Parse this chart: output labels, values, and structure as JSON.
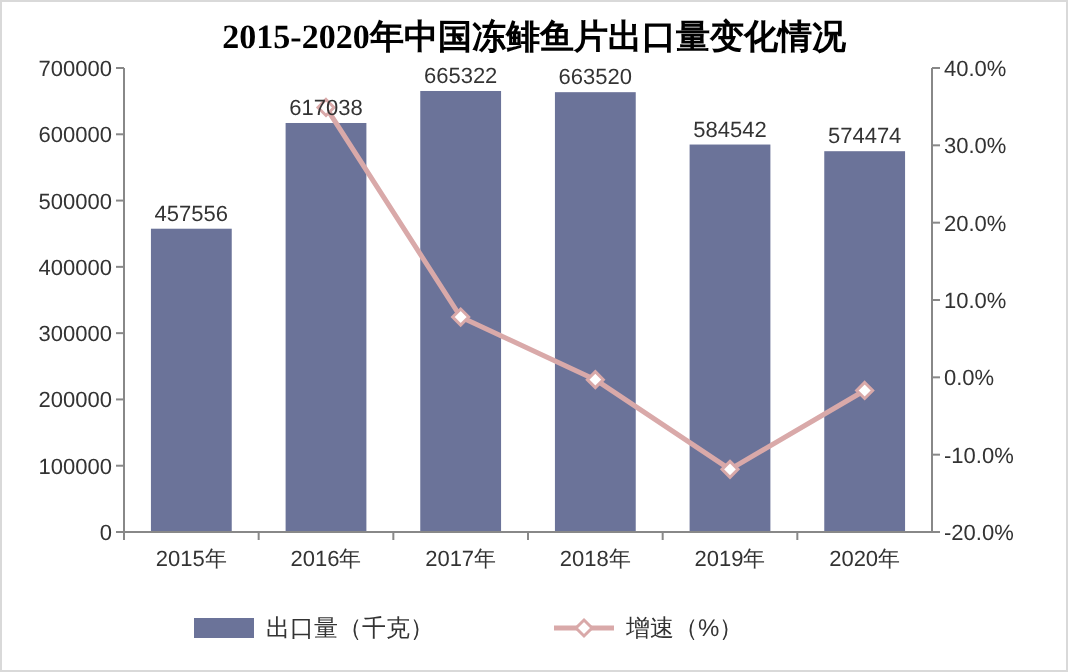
{
  "chart_data": {
    "type": "bar",
    "title": "2015-2020年中国冻鲱鱼片出口量变化情况",
    "categories": [
      "2015年",
      "2016年",
      "2017年",
      "2018年",
      "2019年",
      "2020年"
    ],
    "series": [
      {
        "name": "出口量（千克）",
        "color": "#6b7399",
        "values": [
          457556,
          617038,
          665322,
          663520,
          584542,
          574474
        ],
        "value_labels": [
          "457556",
          "617038",
          "665322",
          "663520",
          "584542",
          "574474"
        ]
      },
      {
        "name": "增速（%）",
        "type": "line",
        "axis": "y2",
        "color": "#d9a9a9",
        "marker": "diamond",
        "values": [
          null,
          34.9,
          7.8,
          -0.3,
          -11.9,
          -1.7
        ]
      }
    ],
    "ylim": [
      0,
      700000
    ],
    "yticks": [
      0,
      100000,
      200000,
      300000,
      400000,
      500000,
      600000,
      700000
    ],
    "y2lim": [
      -20,
      40
    ],
    "y2ticks": [
      {
        "value": -20,
        "label": "-20.0%"
      },
      {
        "value": -10,
        "label": "-10.0%"
      },
      {
        "value": 0,
        "label": "0.0%"
      },
      {
        "value": 10,
        "label": "10.0%"
      },
      {
        "value": 20,
        "label": "20.0%"
      },
      {
        "value": 30,
        "label": "30.0%"
      },
      {
        "value": 40,
        "label": "40.0%"
      }
    ],
    "legend": "bottom"
  }
}
